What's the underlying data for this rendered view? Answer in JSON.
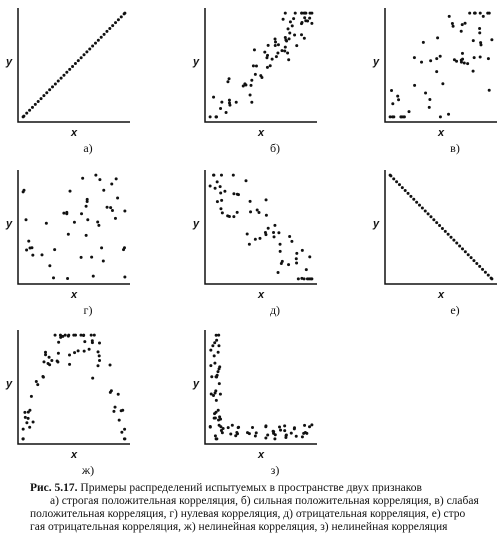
{
  "panels": [
    {
      "y": "y",
      "x": "x",
      "label": "а)"
    },
    {
      "y": "y",
      "x": "x",
      "label": "б)"
    },
    {
      "y": "y",
      "x": "x",
      "label": "в)"
    },
    {
      "y": "y",
      "x": "x",
      "label": "г)"
    },
    {
      "y": "y",
      "x": "x",
      "label": "д)"
    },
    {
      "y": "y",
      "x": "x",
      "label": "е)"
    },
    {
      "y": "y",
      "x": "x",
      "label": "ж)"
    },
    {
      "y": "y",
      "x": "x",
      "label": "з)"
    }
  ],
  "caption": {
    "number": "Рис. 5.17.",
    "title": "Примеры распределений испытуемых в пространстве двух признаков",
    "lines": [
      "а) строгая положительная корреляция, б) сильная положительная корреляция, в) слабая",
      "положительная корреляция, г) нулевая корреляция, д) отрицательная корреляция, е) стро",
      "гая отрицательная корреляция, ж) нелинейная корреляция, з) нелинейная корреляция"
    ]
  }
}
